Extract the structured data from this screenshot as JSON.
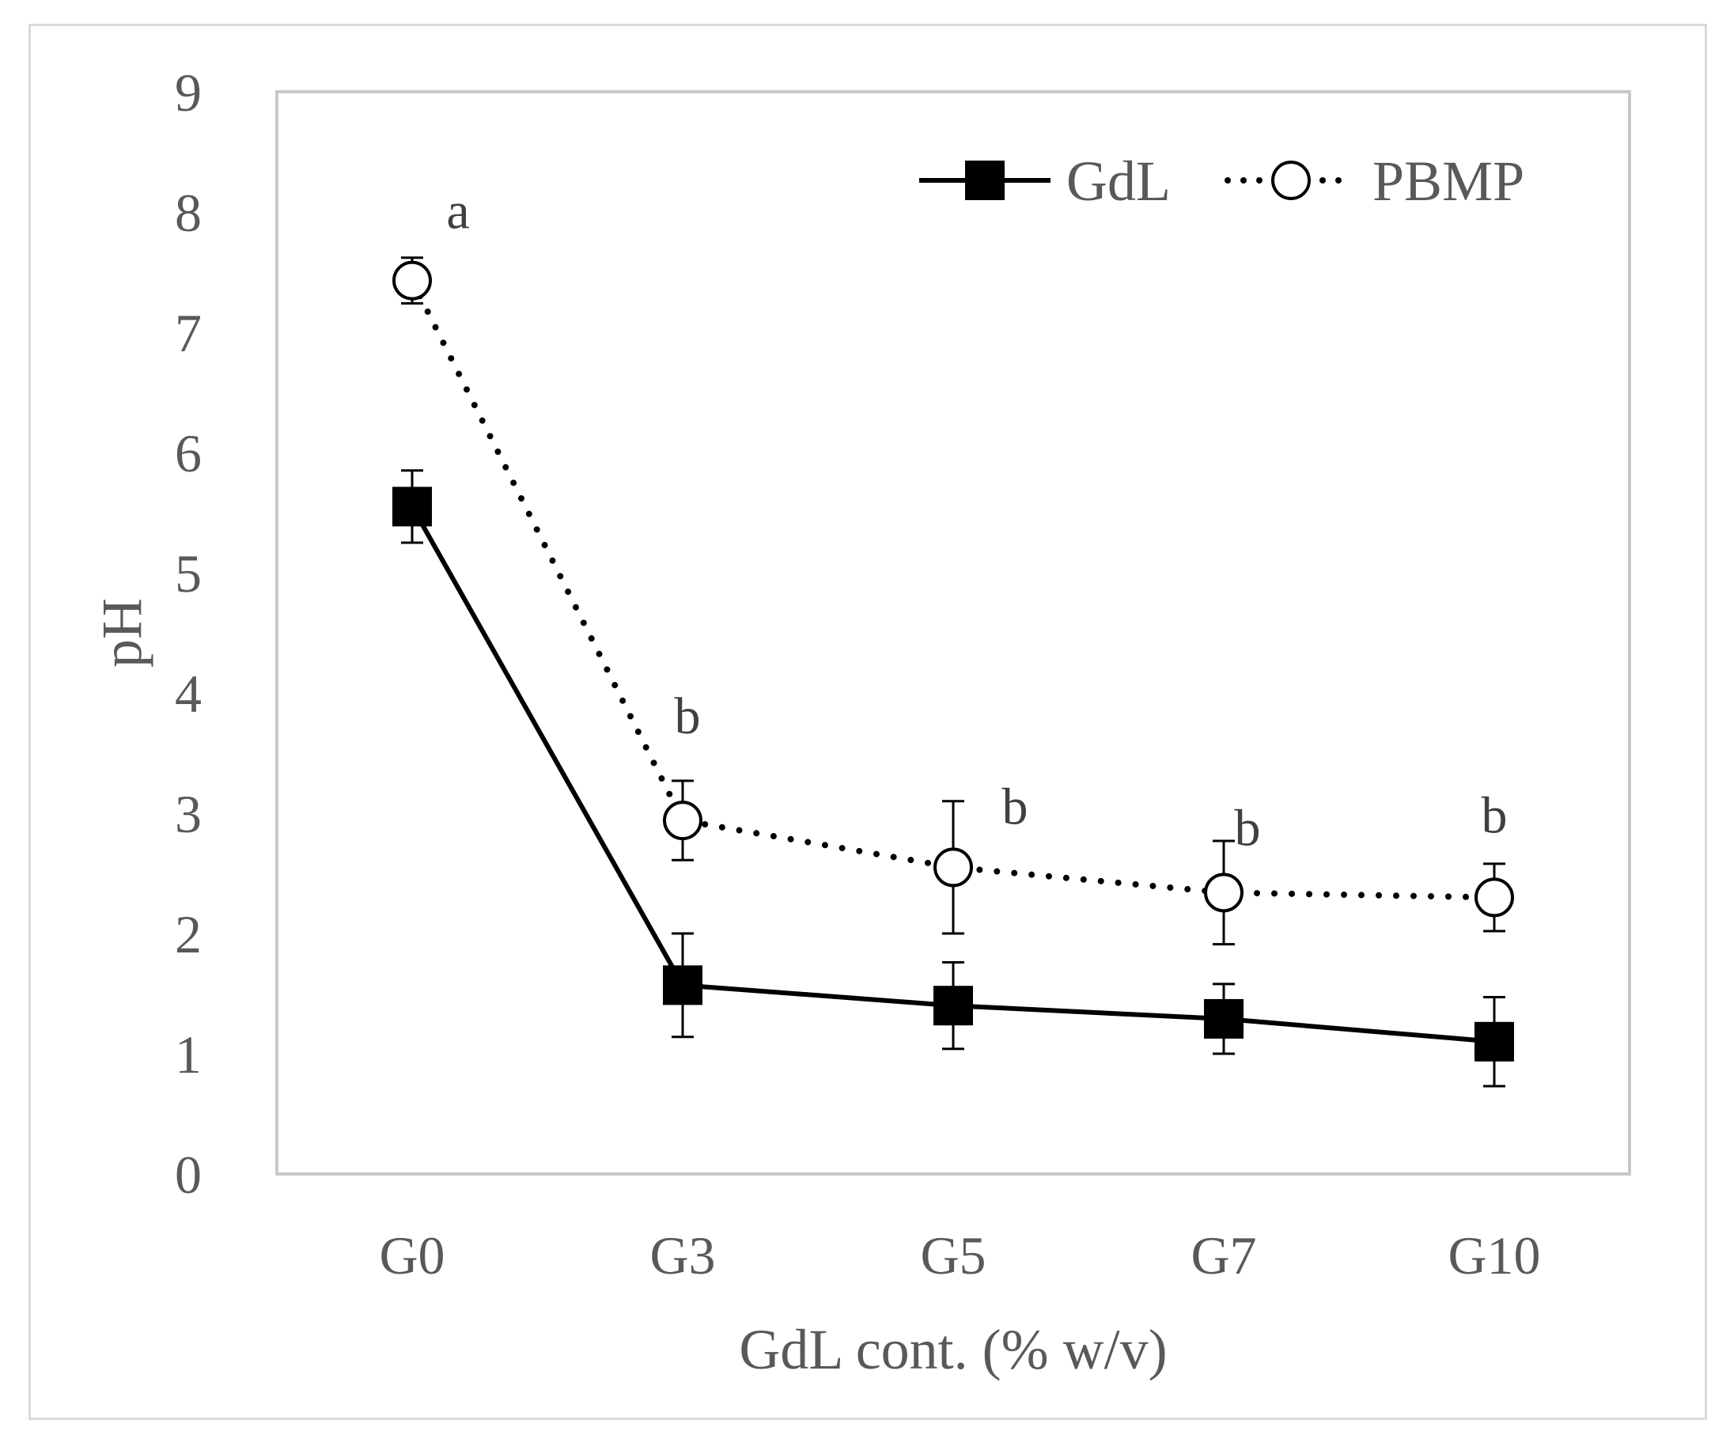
{
  "chart_data": {
    "type": "line",
    "title": "",
    "xlabel": "GdL cont. (% w/v)",
    "ylabel": "pH",
    "categories": [
      "G0",
      "G3",
      "G5",
      "G7",
      "G10"
    ],
    "ylim": [
      0,
      9
    ],
    "yticks": [
      "0",
      "1",
      "2",
      "3",
      "4",
      "5",
      "6",
      "7",
      "8",
      "9"
    ],
    "grid": false,
    "legend_position": "top-right",
    "series": [
      {
        "name": "GdL",
        "style": "solid line, filled square marker",
        "color": "#000000",
        "values": [
          5.55,
          1.57,
          1.4,
          1.29,
          1.1
        ],
        "errors": [
          0.3,
          0.43,
          0.36,
          0.29,
          0.37
        ]
      },
      {
        "name": "PBMP",
        "style": "dotted line, open circle marker",
        "color": "#000000",
        "values": [
          7.43,
          2.94,
          2.55,
          2.34,
          2.3
        ],
        "errors": [
          0.19,
          0.33,
          0.55,
          0.43,
          0.28
        ],
        "annotations": [
          "a",
          "b",
          "b",
          "b",
          "b"
        ]
      }
    ]
  }
}
